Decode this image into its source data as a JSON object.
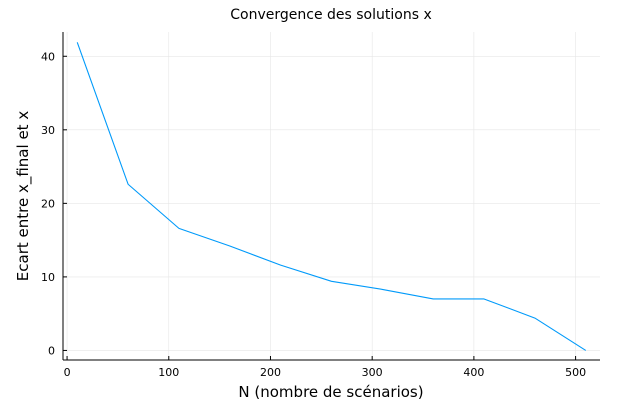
{
  "chart_data": {
    "type": "line",
    "title": "Convergence des solutions x",
    "xlabel": "N (nombre de scénarios)",
    "ylabel": "Ecart entre x_final et x",
    "xlim": [
      -4,
      524
    ],
    "ylim": [
      -1.3,
      43.3
    ],
    "x_ticks": [
      0,
      100,
      200,
      300,
      400,
      500
    ],
    "y_ticks": [
      0,
      10,
      20,
      30,
      40
    ],
    "grid": true,
    "legend": "none",
    "series": [
      {
        "color": "#009AFA",
        "x": [
          10,
          60,
          110,
          160,
          210,
          260,
          310,
          360,
          410,
          460,
          510
        ],
        "y": [
          41.9,
          22.6,
          16.6,
          14.2,
          11.6,
          9.4,
          8.3,
          7.0,
          7.0,
          4.4,
          0.0
        ]
      }
    ]
  }
}
